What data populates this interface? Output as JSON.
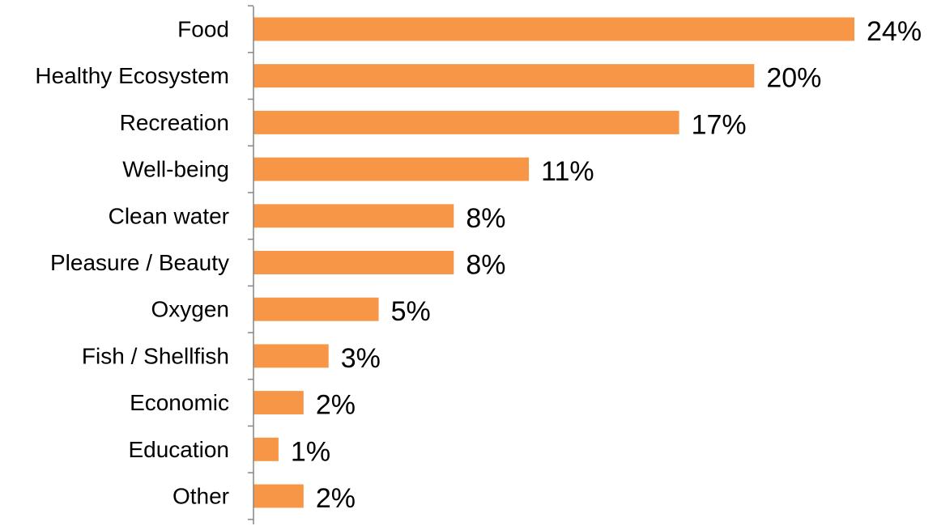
{
  "chart_data": {
    "type": "bar",
    "orientation": "horizontal",
    "categories": [
      "Food",
      "Healthy Ecosystem",
      "Recreation",
      "Well-being",
      "Clean water",
      "Pleasure / Beauty",
      "Oxygen",
      "Fish / Shellfish",
      "Economic",
      "Education",
      "Other"
    ],
    "values": [
      24,
      20,
      17,
      11,
      8,
      8,
      5,
      3,
      2,
      1,
      2
    ],
    "data_labels": [
      "24%",
      "20%",
      "17%",
      "11%",
      "8%",
      "8%",
      "5%",
      "3%",
      "2%",
      "1%",
      "2%"
    ],
    "title": "",
    "xlabel": "",
    "ylabel": "",
    "xlim": [
      0,
      24
    ],
    "grid": false,
    "legend": "none",
    "colors": {
      "bar": "#F79646",
      "axis": "#868686",
      "text": "#000000"
    }
  }
}
